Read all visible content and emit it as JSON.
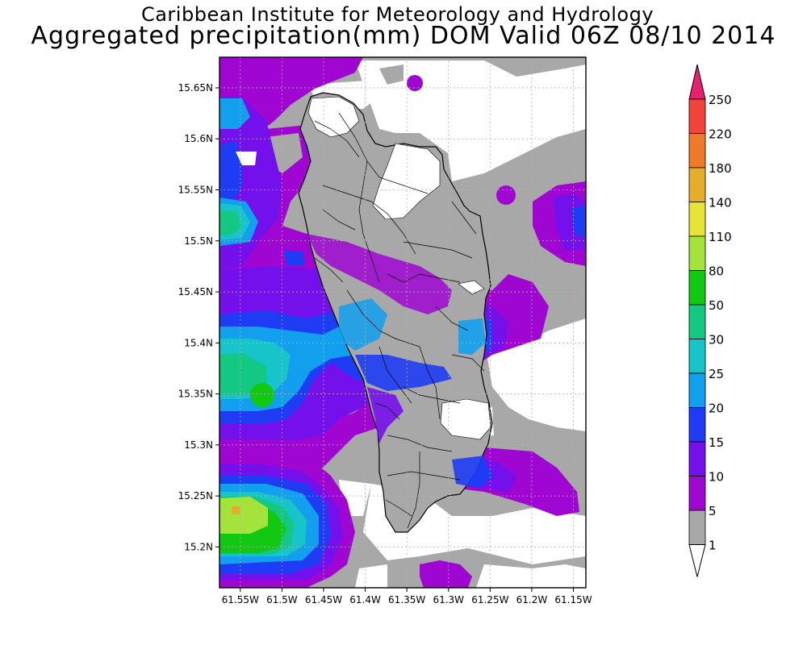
{
  "header": {
    "title": "Caribbean Institute for Meteorology and Hydrology",
    "subtitle": "Aggregated precipitation(mm) DOM Valid 06Z 08/10 2014"
  },
  "map": {
    "region": "Dominica",
    "lat_ticks": [
      "15.65N",
      "15.6N",
      "15.55N",
      "15.5N",
      "15.45N",
      "15.4N",
      "15.35N",
      "15.3N",
      "15.25N",
      "15.2N"
    ],
    "lon_ticks": [
      "61.55W",
      "61.5W",
      "61.45W",
      "61.4W",
      "61.35W",
      "61.3W",
      "61.25W",
      "61.2W",
      "61.15W"
    ],
    "lat_range": [
      15.16,
      15.68
    ],
    "lon_range": [
      61.575,
      61.135
    ],
    "grid": "dotted"
  },
  "colorbar": {
    "levels": [
      {
        "label": "250",
        "color": "#ea1f6d"
      },
      {
        "label": "220",
        "color": "#f1443a"
      },
      {
        "label": "180",
        "color": "#ee7b2c"
      },
      {
        "label": "140",
        "color": "#e5ad2c"
      },
      {
        "label": "110",
        "color": "#e6e537"
      },
      {
        "label": "80",
        "color": "#a4e23c"
      },
      {
        "label": "50",
        "color": "#13c813"
      },
      {
        "label": "30",
        "color": "#13c882"
      },
      {
        "label": "25",
        "color": "#16c4c9"
      },
      {
        "label": "20",
        "color": "#12a0ee"
      },
      {
        "label": "15",
        "color": "#1e3cf3"
      },
      {
        "label": "10",
        "color": "#7310ec"
      },
      {
        "label": "5",
        "color": "#9f06d2"
      },
      {
        "label": "1",
        "color": "#a8a8a8"
      }
    ],
    "top_arrow_color": "#ea1f6d",
    "bottom_arrow_color": "#ffffff"
  }
}
